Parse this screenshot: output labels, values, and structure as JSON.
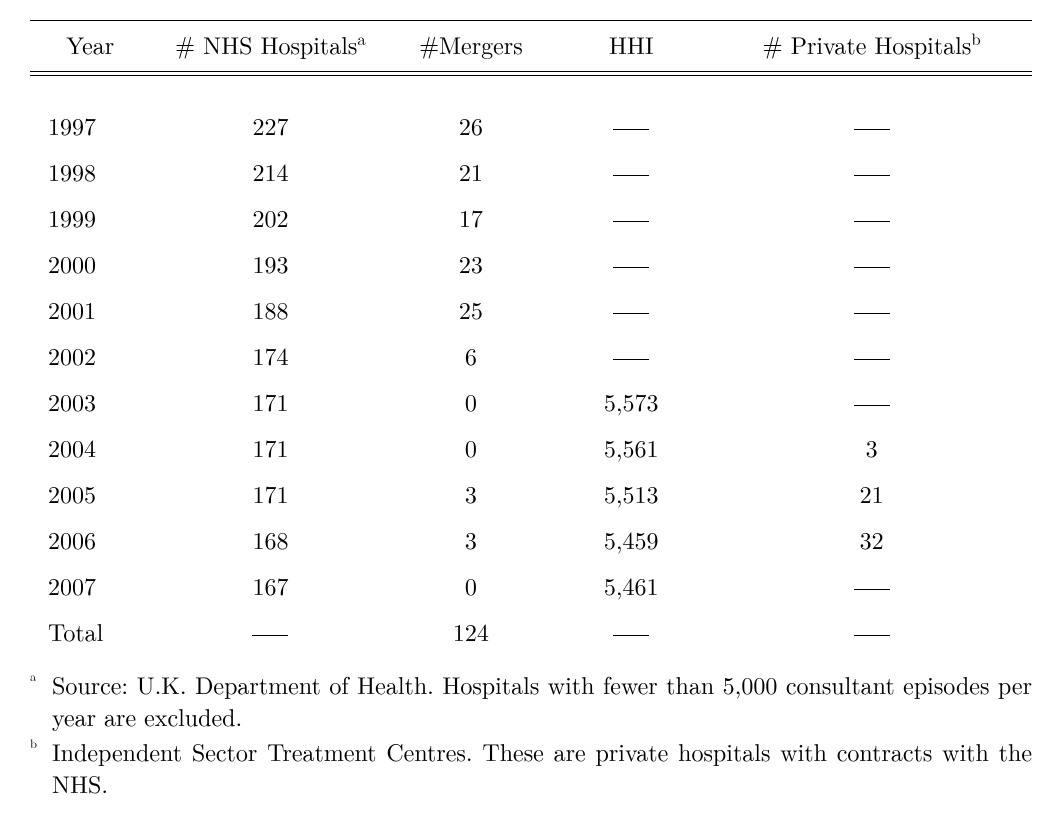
{
  "table": {
    "type": "table",
    "columns": [
      {
        "label": "Year",
        "footnote": null
      },
      {
        "label": "# NHS Hospitals",
        "footnote": "a"
      },
      {
        "label": "#Mergers",
        "footnote": null
      },
      {
        "label": "HHI",
        "footnote": null
      },
      {
        "label": "# Private Hospitals",
        "footnote": "b"
      }
    ],
    "rows": [
      {
        "year": "1997",
        "nhs": "227",
        "mergers": "26",
        "hhi": null,
        "private": null
      },
      {
        "year": "1998",
        "nhs": "214",
        "mergers": "21",
        "hhi": null,
        "private": null
      },
      {
        "year": "1999",
        "nhs": "202",
        "mergers": "17",
        "hhi": null,
        "private": null
      },
      {
        "year": "2000",
        "nhs": "193",
        "mergers": "23",
        "hhi": null,
        "private": null
      },
      {
        "year": "2001",
        "nhs": "188",
        "mergers": "25",
        "hhi": null,
        "private": null
      },
      {
        "year": "2002",
        "nhs": "174",
        "mergers": "6",
        "hhi": null,
        "private": null
      },
      {
        "year": "2003",
        "nhs": "171",
        "mergers": "0",
        "hhi": "5,573",
        "private": null
      },
      {
        "year": "2004",
        "nhs": "171",
        "mergers": "0",
        "hhi": "5,561",
        "private": "3"
      },
      {
        "year": "2005",
        "nhs": "171",
        "mergers": "3",
        "hhi": "5,513",
        "private": "21"
      },
      {
        "year": "2006",
        "nhs": "168",
        "mergers": "3",
        "hhi": "5,459",
        "private": "32"
      },
      {
        "year": "2007",
        "nhs": "167",
        "mergers": "0",
        "hhi": "5,461",
        "private": null
      }
    ],
    "total_row": {
      "year": "Total",
      "nhs": null,
      "mergers": "124",
      "hhi": null,
      "private": null
    },
    "styling": {
      "text_color": "#000000",
      "background_color": "#ffffff",
      "rule_color": "#000000",
      "font_size_body": 24,
      "font_size_footnote": 24,
      "double_rule_gap": 3,
      "column_alignments": [
        "left",
        "center",
        "center",
        "center",
        "center"
      ]
    }
  },
  "footnotes": [
    {
      "marker": "a",
      "text": "Source: U.K. Department of Health. Hospitals with fewer than 5,000 consultant episodes per year are excluded."
    },
    {
      "marker": "b",
      "text": "Independent Sector Treatment Centres. These are private hospitals with contracts with the NHS."
    }
  ]
}
